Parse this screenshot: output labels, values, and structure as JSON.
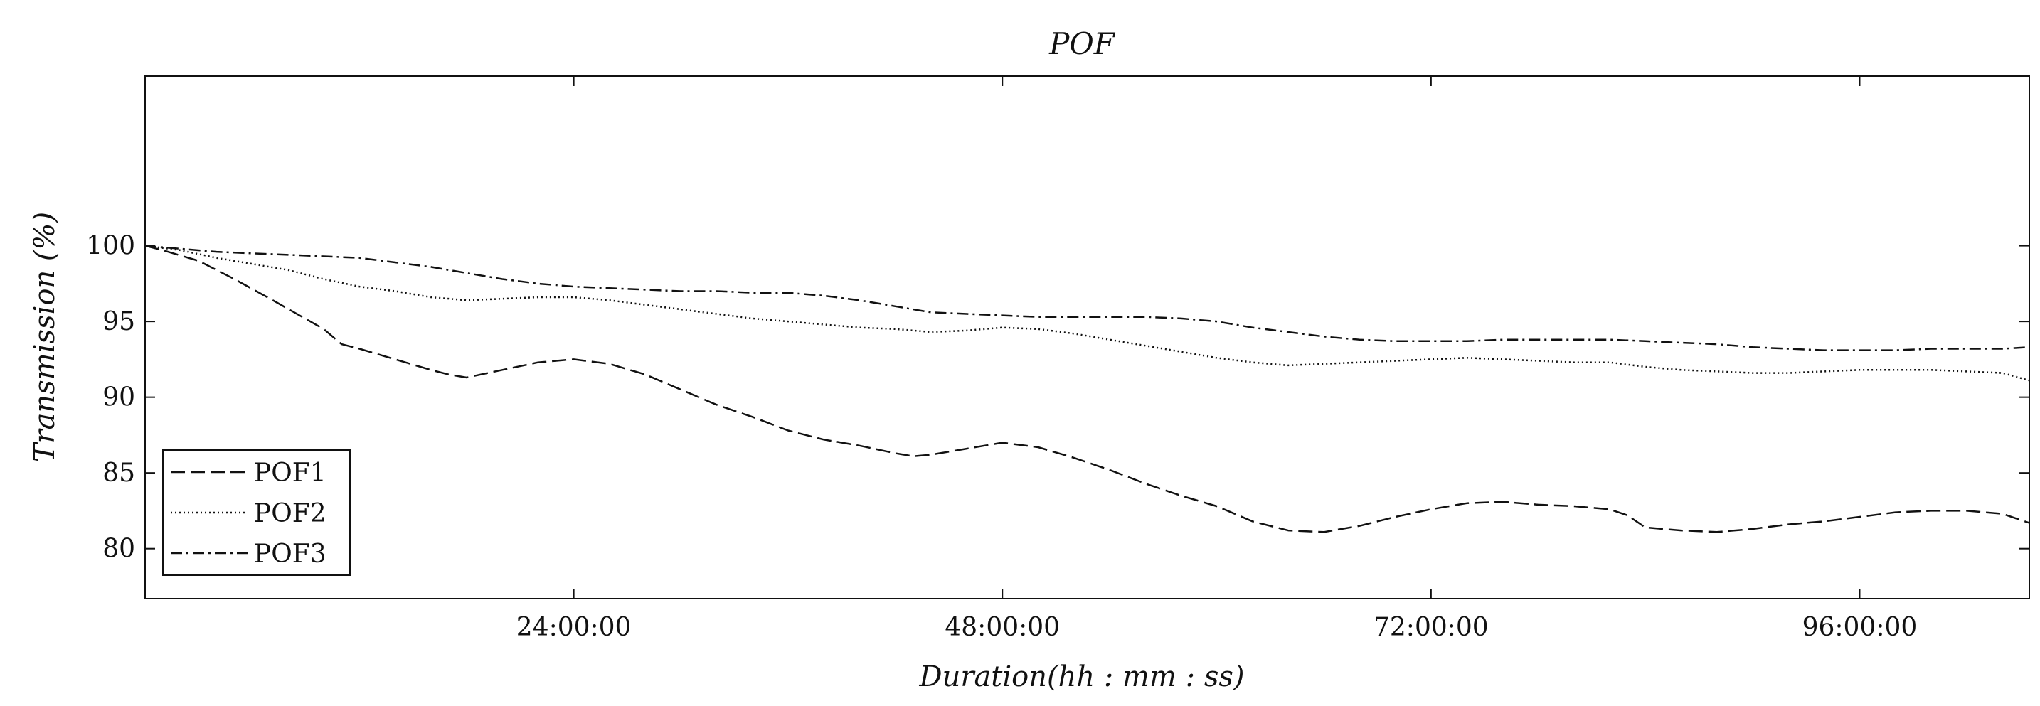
{
  "chart_data": {
    "type": "line",
    "title": "POF",
    "xlabel": "Duration(hh : mm : ss)",
    "ylabel": "Transmission (%)",
    "xlim": [
      0,
      105.5
    ],
    "ylim": [
      76.7,
      111.2
    ],
    "x_ticks": [
      24,
      48,
      72,
      96
    ],
    "x_tick_labels": [
      "24:00:00",
      "48:00:00",
      "72:00:00",
      "96:00:00"
    ],
    "y_ticks": [
      80,
      85,
      90,
      95,
      100
    ],
    "y_tick_labels": [
      "80",
      "85",
      "90",
      "95",
      "100"
    ],
    "grid": false,
    "legend_position": "bottom-left",
    "series": [
      {
        "name": "POF1",
        "style": "dashed",
        "x": [
          0,
          1,
          3,
          5,
          7,
          10,
          11,
          12,
          14,
          16,
          17,
          18,
          20,
          22,
          24,
          26,
          28,
          30,
          32,
          34,
          36,
          38,
          40,
          42,
          43,
          44,
          46,
          48,
          50,
          52,
          54,
          56,
          58,
          60,
          62,
          64,
          66,
          68,
          70,
          72,
          74,
          76,
          78,
          80,
          82,
          83,
          84,
          86,
          88,
          90,
          92,
          94,
          96,
          98,
          100,
          102,
          104,
          105.5
        ],
        "values": [
          100,
          99.7,
          99.0,
          97.8,
          96.5,
          94.5,
          93.5,
          93.2,
          92.5,
          91.8,
          91.5,
          91.3,
          91.8,
          92.3,
          92.5,
          92.2,
          91.5,
          90.5,
          89.5,
          88.7,
          87.8,
          87.2,
          86.8,
          86.3,
          86.1,
          86.2,
          86.6,
          87.0,
          86.7,
          86.0,
          85.2,
          84.3,
          83.5,
          82.8,
          81.8,
          81.2,
          81.1,
          81.5,
          82.1,
          82.6,
          83.0,
          83.1,
          82.9,
          82.8,
          82.6,
          82.2,
          81.4,
          81.2,
          81.1,
          81.3,
          81.6,
          81.8,
          82.1,
          82.4,
          82.5,
          82.5,
          82.3,
          81.7
        ]
      },
      {
        "name": "POF2",
        "style": "dotted",
        "x": [
          0,
          2,
          4,
          6,
          8,
          10,
          12,
          14,
          16,
          18,
          20,
          22,
          24,
          26,
          28,
          30,
          32,
          34,
          36,
          38,
          40,
          42,
          44,
          46,
          48,
          50,
          52,
          54,
          56,
          58,
          60,
          62,
          64,
          66,
          68,
          70,
          72,
          74,
          76,
          78,
          80,
          82,
          84,
          86,
          88,
          90,
          92,
          94,
          96,
          98,
          100,
          102,
          104,
          105.5
        ],
        "values": [
          100,
          99.7,
          99.2,
          98.8,
          98.4,
          97.8,
          97.3,
          97.0,
          96.6,
          96.4,
          96.5,
          96.6,
          96.6,
          96.4,
          96.1,
          95.8,
          95.5,
          95.2,
          95.0,
          94.8,
          94.6,
          94.5,
          94.3,
          94.4,
          94.6,
          94.5,
          94.2,
          93.8,
          93.4,
          93.0,
          92.6,
          92.3,
          92.1,
          92.2,
          92.3,
          92.4,
          92.5,
          92.6,
          92.5,
          92.4,
          92.3,
          92.3,
          92.0,
          91.8,
          91.7,
          91.6,
          91.6,
          91.7,
          91.8,
          91.8,
          91.8,
          91.7,
          91.6,
          91.1
        ]
      },
      {
        "name": "POF3",
        "style": "dashdot",
        "x": [
          0,
          2,
          4,
          6,
          8,
          10,
          12,
          14,
          16,
          18,
          20,
          22,
          24,
          26,
          28,
          30,
          32,
          34,
          36,
          38,
          40,
          42,
          44,
          46,
          48,
          50,
          52,
          54,
          56,
          58,
          60,
          62,
          64,
          66,
          68,
          70,
          72,
          74,
          76,
          78,
          80,
          82,
          84,
          86,
          88,
          90,
          92,
          94,
          96,
          98,
          100,
          102,
          104,
          105.5
        ],
        "values": [
          100,
          99.8,
          99.6,
          99.5,
          99.4,
          99.3,
          99.2,
          98.9,
          98.6,
          98.2,
          97.8,
          97.5,
          97.3,
          97.2,
          97.1,
          97.0,
          97.0,
          96.9,
          96.9,
          96.7,
          96.4,
          96.0,
          95.6,
          95.5,
          95.4,
          95.3,
          95.3,
          95.3,
          95.3,
          95.2,
          95.0,
          94.6,
          94.3,
          94.0,
          93.8,
          93.7,
          93.7,
          93.7,
          93.8,
          93.8,
          93.8,
          93.8,
          93.7,
          93.6,
          93.5,
          93.3,
          93.2,
          93.1,
          93.1,
          93.1,
          93.2,
          93.2,
          93.2,
          93.3
        ]
      }
    ]
  }
}
